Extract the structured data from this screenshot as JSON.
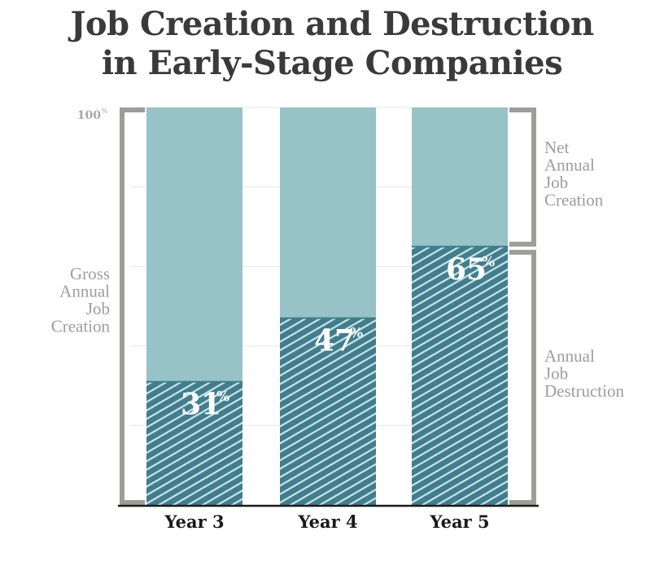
{
  "title": {
    "line1": "Job Creation and Destruction",
    "line2": "in Early-Stage Companies"
  },
  "chart_data": {
    "type": "bar",
    "stacked": true,
    "categories": [
      "Year 3",
      "Year 4",
      "Year 5"
    ],
    "series": [
      {
        "values": [
          31,
          47,
          65
        ],
        "pattern": "hatched"
      },
      {
        "values": [
          69,
          53,
          35
        ]
      }
    ],
    "value_labels": [
      "31",
      "47",
      "65"
    ],
    "value_unit": "%",
    "ylim": [
      0,
      100
    ],
    "y_tick_label": "100",
    "y_tick_unit": "%",
    "left_annotation": [
      "Gross",
      "Annual",
      "Job",
      "Creation"
    ],
    "right_annotations": [
      {
        "text": [
          "Net",
          "Annual",
          "Job",
          "Creation"
        ]
      },
      {
        "text": [
          "Annual",
          "Job",
          "Destruction"
        ]
      }
    ],
    "grid": true,
    "colors": {
      "bar": "#97c2c6",
      "hatch_base": "#3f7e8d",
      "hatch_line": "#cfe3e6",
      "bracket": "#9d9d9a",
      "grid": "#e6e6e6",
      "axis": "#1a1a1a"
    }
  }
}
